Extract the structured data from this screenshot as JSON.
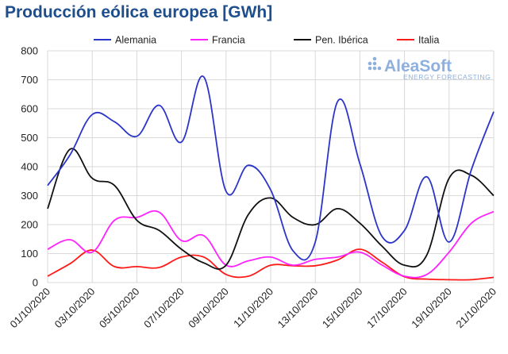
{
  "chart_data": {
    "type": "line",
    "title": "Producción eólica europea [GWh]",
    "xlabel": "",
    "ylabel": "",
    "ylim": [
      0,
      800
    ],
    "yticks": [
      0,
      100,
      200,
      300,
      400,
      500,
      600,
      700,
      800
    ],
    "grid": "horizontal",
    "legend": "top",
    "x": [
      "01/10/2020",
      "02/10/2020",
      "03/10/2020",
      "04/10/2020",
      "05/10/2020",
      "06/10/2020",
      "07/10/2020",
      "08/10/2020",
      "09/10/2020",
      "10/10/2020",
      "11/10/2020",
      "12/10/2020",
      "13/10/2020",
      "14/10/2020",
      "15/10/2020",
      "16/10/2020",
      "17/10/2020",
      "18/10/2020",
      "19/10/2020",
      "20/10/2020",
      "21/10/2020"
    ],
    "xtick_labels": [
      "01/10/2020",
      "03/10/2020",
      "05/10/2020",
      "07/10/2020",
      "09/10/2020",
      "11/10/2020",
      "13/10/2020",
      "15/10/2020",
      "17/10/2020",
      "19/10/2020",
      "21/10/2020"
    ],
    "series": [
      {
        "name": "Alemania",
        "color": "#2b35c9",
        "values": [
          335,
          440,
          580,
          555,
          505,
          612,
          485,
          710,
          315,
          405,
          320,
          110,
          140,
          625,
          410,
          158,
          180,
          365,
          140,
          390,
          590
        ]
      },
      {
        "name": "Francia",
        "color": "#ff22ff",
        "values": [
          115,
          148,
          105,
          215,
          225,
          243,
          145,
          162,
          60,
          75,
          88,
          60,
          80,
          88,
          105,
          60,
          22,
          28,
          105,
          205,
          245
        ]
      },
      {
        "name": "Pen. Ibérica",
        "color": "#111111",
        "values": [
          255,
          460,
          360,
          335,
          215,
          180,
          115,
          68,
          60,
          235,
          292,
          225,
          200,
          255,
          205,
          125,
          60,
          95,
          360,
          370,
          300
        ]
      },
      {
        "name": "Italia",
        "color": "#ff1a1a",
        "values": [
          22,
          65,
          112,
          55,
          55,
          52,
          88,
          88,
          28,
          22,
          60,
          58,
          58,
          78,
          115,
          70,
          20,
          12,
          10,
          10,
          18
        ]
      }
    ]
  },
  "logo": {
    "name": "AleaSoft",
    "tagline": "ENERGY FORECASTING",
    "color": "#8fb0dd"
  }
}
